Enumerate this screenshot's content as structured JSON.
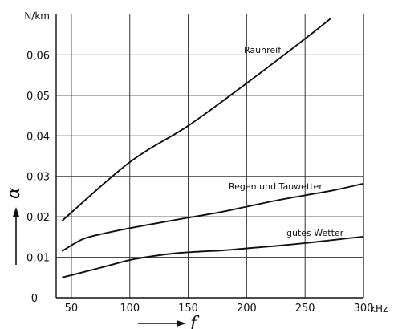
{
  "chart_data": {
    "type": "line",
    "title": "",
    "xlabel": "f",
    "ylabel": "α",
    "x_unit": "kHz",
    "y_unit": "N/km",
    "xlim": [
      0,
      300
    ],
    "ylim": [
      0,
      0.07
    ],
    "x_ticks": [
      {
        "value": 50,
        "label": "50"
      },
      {
        "value": 100,
        "label": "100"
      },
      {
        "value": 150,
        "label": "150"
      },
      {
        "value": 200,
        "label": "200"
      },
      {
        "value": 250,
        "label": "250"
      },
      {
        "value": 300,
        "label": "300"
      }
    ],
    "y_ticks": [
      {
        "value": 0,
        "label": "0"
      },
      {
        "value": 0.01,
        "label": "0,01"
      },
      {
        "value": 0.02,
        "label": "0,02"
      },
      {
        "value": 0.03,
        "label": "0,03"
      },
      {
        "value": 0.04,
        "label": "0,04"
      },
      {
        "value": 0.05,
        "label": "0,05"
      },
      {
        "value": 0.06,
        "label": "0,06"
      }
    ],
    "grid": true,
    "series": [
      {
        "name": "Rauhreif",
        "x": [
          42,
          100,
          150,
          200,
          250,
          272
        ],
        "y": [
          0.019,
          0.0335,
          0.0425,
          0.053,
          0.064,
          0.069
        ]
      },
      {
        "name": "Regen und Tauwetter",
        "x": [
          42,
          60,
          80,
          100,
          125,
          150,
          175,
          200,
          225,
          250,
          275,
          300
        ],
        "y": [
          0.0115,
          0.0145,
          0.016,
          0.0172,
          0.0185,
          0.0198,
          0.021,
          0.0225,
          0.024,
          0.0253,
          0.0266,
          0.0282
        ]
      },
      {
        "name": "gutes Wetter",
        "x": [
          42,
          60,
          80,
          100,
          120,
          140,
          160,
          180,
          200,
          225,
          250,
          275,
          300
        ],
        "y": [
          0.005,
          0.0063,
          0.0078,
          0.0093,
          0.0103,
          0.011,
          0.0114,
          0.0117,
          0.0122,
          0.0128,
          0.0135,
          0.0143,
          0.0151
        ]
      }
    ]
  }
}
